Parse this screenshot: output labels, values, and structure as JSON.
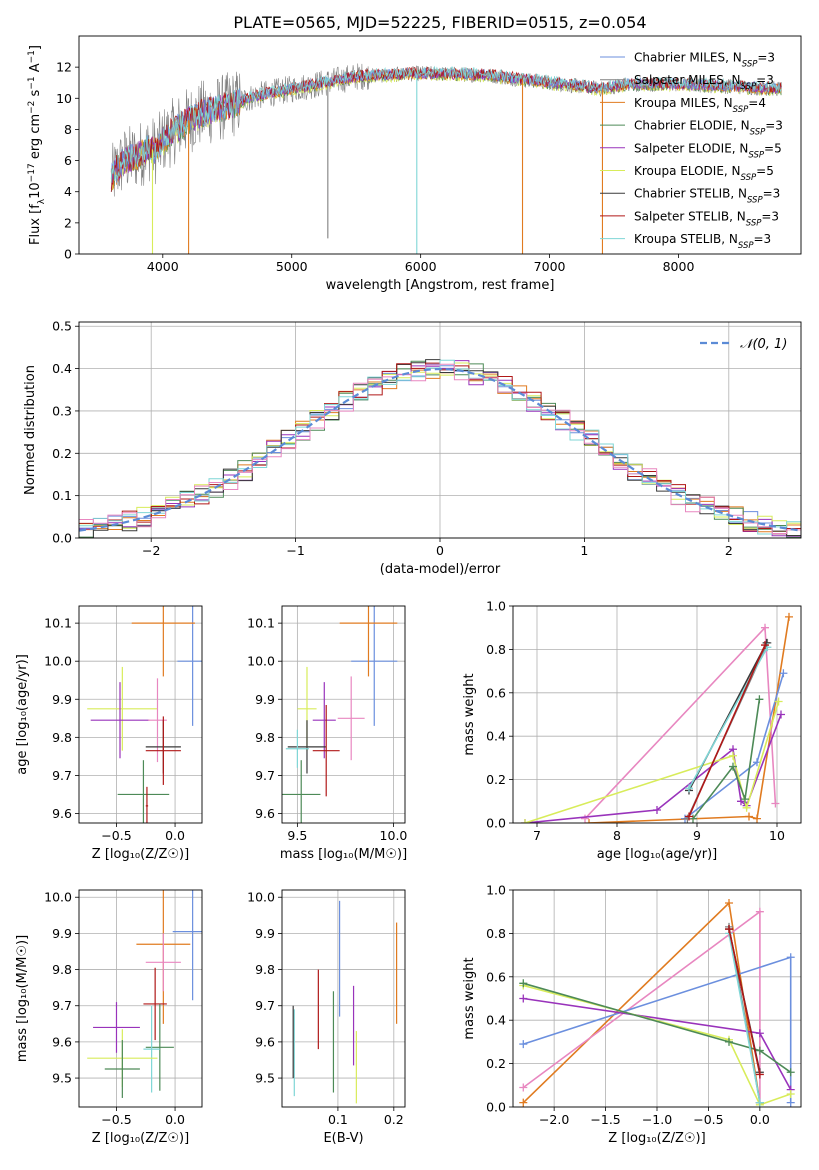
{
  "figure_title": "PLATE=0565, MJD=52225, FIBERID=0515, z=0.054",
  "colors": {
    "Chabrier MILES": "#6b8fde",
    "Salpeter MILES": "#808080",
    "Kroupa MILES": "#e07b20",
    "Chabrier ELODIE": "#4d8a57",
    "Salpeter ELODIE": "#9933bb",
    "Kroupa ELODIE": "#d8ec5a",
    "Chabrier STELIB": "#3a3a3a",
    "Salpeter STELIB": "#b01818",
    "Kroupa STELIB": "#7fd6d6",
    "pink": "#e887c0",
    "gauss": "#5b8bd6"
  },
  "chart_data": [
    {
      "id": "spectrum",
      "type": "line",
      "title": "PLATE=0565, MJD=52225, FIBERID=0515, z=0.054",
      "xlabel": "wavelength [Angstrom, rest frame]",
      "ylabel": "Flux [f",
      "ylabel_parts": [
        "Flux [f",
        "λ",
        "10",
        "−17",
        " erg cm",
        "−2",
        " s",
        "−1",
        " A",
        "−1",
        "]"
      ],
      "xlim": [
        3350,
        8950
      ],
      "ylim": [
        0,
        14
      ],
      "xticks": [
        4000,
        5000,
        6000,
        7000,
        8000
      ],
      "yticks": [
        0,
        2,
        4,
        6,
        8,
        10,
        12
      ],
      "grid": false,
      "legend_position": "top-right",
      "legend": [
        {
          "model": "Chabrier MILES",
          "n": "3"
        },
        {
          "model": "Salpeter MILES",
          "n": "3"
        },
        {
          "model": "Kroupa MILES",
          "n": "4"
        },
        {
          "model": "Chabrier ELODIE",
          "n": "3"
        },
        {
          "model": "Salpeter ELODIE",
          "n": "5"
        },
        {
          "model": "Kroupa ELODIE",
          "n": "5"
        },
        {
          "model": "Chabrier STELIB",
          "n": "3"
        },
        {
          "model": "Salpeter STELIB",
          "n": "3"
        },
        {
          "model": "Kroupa STELIB",
          "n": "3"
        }
      ],
      "legend_prefix_sub": "SSP",
      "continuum": {
        "x": [
          3600,
          3650,
          3700,
          3800,
          3900,
          3950,
          4000,
          4100,
          4200,
          4300,
          4500,
          4700,
          5000,
          5200,
          5500,
          6000,
          6500,
          7000,
          7400,
          7600,
          8000,
          8300,
          8800
        ],
        "y": [
          4.8,
          5.5,
          6.0,
          6.3,
          6.8,
          6.6,
          7.3,
          8.0,
          8.6,
          9.0,
          9.5,
          10.1,
          10.6,
          10.9,
          11.4,
          11.6,
          11.5,
          11.0,
          10.6,
          10.9,
          10.9,
          10.8,
          10.6
        ]
      },
      "spikes": [
        {
          "x": 4200,
          "y": 0,
          "series": "Kroupa MILES"
        },
        {
          "x": 5970,
          "y": 0,
          "series": "Kroupa STELIB"
        },
        {
          "x": 6790,
          "y": 0,
          "series": "Kroupa MILES"
        },
        {
          "x": 7410,
          "y": 0,
          "series": "Kroupa MILES"
        },
        {
          "x": 3920,
          "y": 0,
          "series": "Kroupa ELODIE"
        },
        {
          "x": 5280,
          "y": 1.0,
          "series": "Salpeter MILES"
        }
      ]
    },
    {
      "id": "residuals",
      "type": "histogram",
      "xlabel": "(data-model)/error",
      "ylabel": "Normed distribution",
      "xlim": [
        -2.5,
        2.5
      ],
      "ylim": [
        0,
        0.51
      ],
      "xticks": [
        -2,
        -1,
        0,
        1,
        2
      ],
      "yticks": [
        0.0,
        0.1,
        0.2,
        0.3,
        0.4,
        0.5
      ],
      "grid": true,
      "bin_width": 0.1,
      "legend": "𝒩(0, 1)",
      "legend_position": "top-right",
      "gaussian": {
        "mean": 0,
        "sigma": 1,
        "label": "𝒩(0, 1)"
      }
    },
    {
      "id": "age-vs-Z",
      "type": "scatter",
      "xlabel": "Z [log₁₀(Z/Z☉)]",
      "ylabel": "age  [log₁₀(age/yr)]",
      "xlim": [
        -0.82,
        0.23
      ],
      "ylim": [
        9.575,
        10.145
      ],
      "xticks": [
        -0.5,
        0.0
      ],
      "yticks": [
        9.6,
        9.7,
        9.8,
        9.9,
        10.0,
        10.1
      ],
      "grid": true,
      "points": [
        {
          "series": "Chabrier MILES",
          "x": 0.15,
          "y": 10.0,
          "xerr": 0.13,
          "yerr": 0.17
        },
        {
          "series": "Kroupa MILES",
          "x": -0.1,
          "y": 10.1,
          "xerr": 0.27,
          "yerr": 0.14
        },
        {
          "series": "Kroupa ELODIE",
          "x": -0.45,
          "y": 9.875,
          "xerr": 0.3,
          "yerr": 0.11
        },
        {
          "series": "Salpeter ELODIE",
          "x": -0.47,
          "y": 9.845,
          "xerr": 0.25,
          "yerr": 0.1
        },
        {
          "series": "pink",
          "x": -0.15,
          "y": 9.845,
          "xerr": 0.08,
          "yerr": 0.11
        },
        {
          "series": "Chabrier STELIB",
          "x": -0.1,
          "y": 9.775,
          "xerr": 0.15,
          "yerr": 0.07
        },
        {
          "series": "Salpeter STELIB",
          "x": -0.1,
          "y": 9.765,
          "xerr": 0.15,
          "yerr": 0.09
        },
        {
          "series": "Chabrier ELODIE",
          "x": -0.27,
          "y": 9.65,
          "xerr": 0.22,
          "yerr": 0.09
        },
        {
          "series": "Salpeter STELIB",
          "x": -0.24,
          "y": 9.62,
          "xerr": 0.01,
          "yerr": 0.05
        }
      ]
    },
    {
      "id": "age-vs-mass",
      "type": "scatter",
      "xlabel": "mass [log₁₀(M/M☉)]",
      "ylabel": "",
      "xlim": [
        9.42,
        10.06
      ],
      "ylim": [
        9.575,
        10.145
      ],
      "xticks": [
        9.5,
        10.0
      ],
      "yticks": [
        9.6,
        9.7,
        9.8,
        9.9,
        10.0,
        10.1
      ],
      "grid": true,
      "points": [
        {
          "series": "Chabrier MILES",
          "x": 9.9,
          "y": 10.0,
          "xerr": 0.12,
          "yerr": 0.17
        },
        {
          "series": "Kroupa MILES",
          "x": 9.87,
          "y": 10.1,
          "xerr": 0.15,
          "yerr": 0.14
        },
        {
          "series": "Kroupa ELODIE",
          "x": 9.55,
          "y": 9.875,
          "xerr": 0.05,
          "yerr": 0.11
        },
        {
          "series": "Salpeter ELODIE",
          "x": 9.64,
          "y": 9.845,
          "xerr": 0.06,
          "yerr": 0.1
        },
        {
          "series": "pink",
          "x": 9.78,
          "y": 9.85,
          "xerr": 0.07,
          "yerr": 0.11
        },
        {
          "series": "Chabrier STELIB",
          "x": 9.55,
          "y": 9.775,
          "xerr": 0.1,
          "yerr": 0.07
        },
        {
          "series": "Salpeter STELIB",
          "x": 9.65,
          "y": 9.765,
          "xerr": 0.07,
          "yerr": 0.12
        },
        {
          "series": "Chabrier ELODIE",
          "x": 9.52,
          "y": 9.65,
          "xerr": 0.1,
          "yerr": 0.09
        },
        {
          "series": "Kroupa STELIB",
          "x": 9.5,
          "y": 9.77,
          "xerr": 0.06,
          "yerr": 0.05
        }
      ]
    },
    {
      "id": "weight-vs-age",
      "type": "line",
      "xlabel": "age  [log₁₀(age/yr)]",
      "ylabel": "mass weight",
      "xlim": [
        6.7,
        10.3
      ],
      "ylim": [
        0,
        1
      ],
      "xticks": [
        7,
        8,
        9,
        10
      ],
      "yticks": [
        0.0,
        0.2,
        0.4,
        0.6,
        0.8,
        1.0
      ],
      "grid": true,
      "series": [
        {
          "name": "Kroupa MILES",
          "x": [
            7.65,
            9.65,
            9.75,
            10.15
          ],
          "y": [
            0.0,
            0.03,
            0.02,
            0.95
          ]
        },
        {
          "name": "pink",
          "x": [
            7.6,
            9.85,
            9.98
          ],
          "y": [
            0.02,
            0.9,
            0.09
          ]
        },
        {
          "name": "Chabrier MILES",
          "x": [
            8.85,
            9.75,
            10.08
          ],
          "y": [
            0.02,
            0.28,
            0.69
          ]
        },
        {
          "name": "Salpeter ELODIE",
          "x": [
            6.85,
            8.5,
            9.45,
            9.55,
            9.62,
            10.05
          ],
          "y": [
            0.0,
            0.06,
            0.34,
            0.1,
            0.08,
            0.5
          ]
        },
        {
          "name": "Kroupa ELODIE",
          "x": [
            6.85,
            9.45,
            9.62,
            10.02
          ],
          "y": [
            0.0,
            0.31,
            0.07,
            0.56
          ]
        },
        {
          "name": "Chabrier ELODIE",
          "x": [
            8.95,
            9.45,
            9.6,
            9.78
          ],
          "y": [
            0.02,
            0.26,
            0.11,
            0.57
          ]
        },
        {
          "name": "Salpeter MILES",
          "x": [
            8.88,
            9.88
          ],
          "y": [
            0.02,
            0.83
          ]
        },
        {
          "name": "Chabrier STELIB",
          "x": [
            8.9,
            9.87
          ],
          "y": [
            0.15,
            0.83
          ]
        },
        {
          "name": "Kroupa STELIB",
          "x": [
            8.9,
            9.88
          ],
          "y": [
            0.16,
            0.81
          ]
        },
        {
          "name": "Salpeter STELIB",
          "x": [
            8.9,
            9.85
          ],
          "y": [
            0.03,
            0.82
          ]
        }
      ]
    },
    {
      "id": "mass-vs-Z",
      "type": "scatter",
      "xlabel": "Z [log₁₀(Z/Z☉)]",
      "ylabel": "mass [log₁₀(M/M☉)]",
      "xlim": [
        -0.82,
        0.23
      ],
      "ylim": [
        9.42,
        10.02
      ],
      "xticks": [
        -0.5,
        0.0
      ],
      "yticks": [
        9.5,
        9.6,
        9.7,
        9.8,
        9.9,
        10.0
      ],
      "grid": true,
      "points": [
        {
          "series": "Chabrier MILES",
          "x": 0.15,
          "y": 9.905,
          "xerr": 0.17,
          "yerr": 0.19
        },
        {
          "series": "Kroupa MILES",
          "x": -0.1,
          "y": 9.87,
          "xerr": 0.23,
          "yerr": 0.22
        },
        {
          "series": "pink",
          "x": -0.1,
          "y": 9.82,
          "xerr": 0.15,
          "yerr": 0.08
        },
        {
          "series": "Salpeter STELIB",
          "x": -0.17,
          "y": 9.705,
          "xerr": 0.1,
          "yerr": 0.1
        },
        {
          "series": "Salpeter ELODIE",
          "x": -0.5,
          "y": 9.64,
          "xerr": 0.2,
          "yerr": 0.07
        },
        {
          "series": "Chabrier ELODIE",
          "x": -0.13,
          "y": 9.585,
          "xerr": 0.12,
          "yerr": 0.12
        },
        {
          "series": "Kroupa STELIB",
          "x": -0.2,
          "y": 9.58,
          "xerr": 0.07,
          "yerr": 0.12
        },
        {
          "series": "Kroupa ELODIE",
          "x": -0.45,
          "y": 9.555,
          "xerr": 0.3,
          "yerr": 0.08
        },
        {
          "series": "Chabrier ELODIE",
          "x": -0.45,
          "y": 9.525,
          "xerr": 0.15,
          "yerr": 0.08
        }
      ]
    },
    {
      "id": "mass-vs-ebv",
      "type": "scatter",
      "xlabel": "E(B-V)",
      "ylabel": "",
      "xlim": [
        0.0,
        0.22
      ],
      "ylim": [
        9.42,
        10.02
      ],
      "xticks": [
        0.1,
        0.2
      ],
      "yticks": [
        9.5,
        9.6,
        9.7,
        9.8,
        9.9,
        10.0
      ],
      "grid": true,
      "points": [
        {
          "series": "Kroupa MILES",
          "x": 0.205,
          "y": 9.79,
          "xerr": 0,
          "yerr": 0.14
        },
        {
          "series": "Chabrier MILES",
          "x": 0.103,
          "y": 9.83,
          "xerr": 0,
          "yerr": 0.16
        },
        {
          "series": "Salpeter STELIB",
          "x": 0.065,
          "y": 9.69,
          "xerr": 0,
          "yerr": 0.11
        },
        {
          "series": "Chabrier ELODIE",
          "x": 0.092,
          "y": 9.6,
          "xerr": 0,
          "yerr": 0.14
        },
        {
          "series": "Salpeter ELODIE",
          "x": 0.128,
          "y": 9.645,
          "xerr": 0,
          "yerr": 0.11
        },
        {
          "series": "Kroupa ELODIE",
          "x": 0.133,
          "y": 9.53,
          "xerr": 0,
          "yerr": 0.1
        },
        {
          "series": "Kroupa STELIB",
          "x": 0.022,
          "y": 9.57,
          "xerr": 0,
          "yerr": 0.12
        },
        {
          "series": "Chabrier STELIB",
          "x": 0.02,
          "y": 9.6,
          "xerr": 0,
          "yerr": 0.1
        }
      ]
    },
    {
      "id": "weight-vs-Z",
      "type": "line",
      "xlabel": "Z [log₁₀(Z/Z☉)]",
      "ylabel": "mass weight",
      "xlim": [
        -2.4,
        0.4
      ],
      "ylim": [
        0,
        1
      ],
      "xticks": [
        -2.0,
        -1.5,
        -1.0,
        -0.5,
        0.0
      ],
      "yticks": [
        0.0,
        0.2,
        0.4,
        0.6,
        0.8,
        1.0
      ],
      "grid": true,
      "series": [
        {
          "name": "Kroupa MILES",
          "x": [
            -2.3,
            -0.3,
            0.0
          ],
          "y": [
            0.02,
            0.94,
            0.02
          ]
        },
        {
          "name": "pink",
          "x": [
            -2.3,
            0.0,
            0.0
          ],
          "y": [
            0.09,
            0.9,
            0.02
          ]
        },
        {
          "name": "Chabrier MILES",
          "x": [
            -2.3,
            0.3,
            0.3
          ],
          "y": [
            0.29,
            0.69,
            0.02
          ]
        },
        {
          "name": "Salpeter ELODIE",
          "x": [
            -2.3,
            0.0,
            0.3
          ],
          "y": [
            0.5,
            0.34,
            0.08
          ]
        },
        {
          "name": "Kroupa ELODIE",
          "x": [
            -2.3,
            -0.3,
            0.0,
            0.3
          ],
          "y": [
            0.56,
            0.31,
            0.01,
            0.06
          ]
        },
        {
          "name": "Chabrier ELODIE",
          "x": [
            -2.3,
            -0.3,
            0.0,
            0.3
          ],
          "y": [
            0.57,
            0.3,
            0.26,
            0.16
          ]
        },
        {
          "name": "Salpeter MILES",
          "x": [
            -0.3,
            0.0
          ],
          "y": [
            0.83,
            0.02
          ]
        },
        {
          "name": "Chabrier STELIB",
          "x": [
            -0.3,
            0.0
          ],
          "y": [
            0.82,
            0.16
          ]
        },
        {
          "name": "Kroupa STELIB",
          "x": [
            -0.3,
            0.0
          ],
          "y": [
            0.8,
            0.02
          ]
        },
        {
          "name": "Salpeter STELIB",
          "x": [
            -0.3,
            0.0
          ],
          "y": [
            0.82,
            0.15
          ]
        }
      ]
    }
  ]
}
